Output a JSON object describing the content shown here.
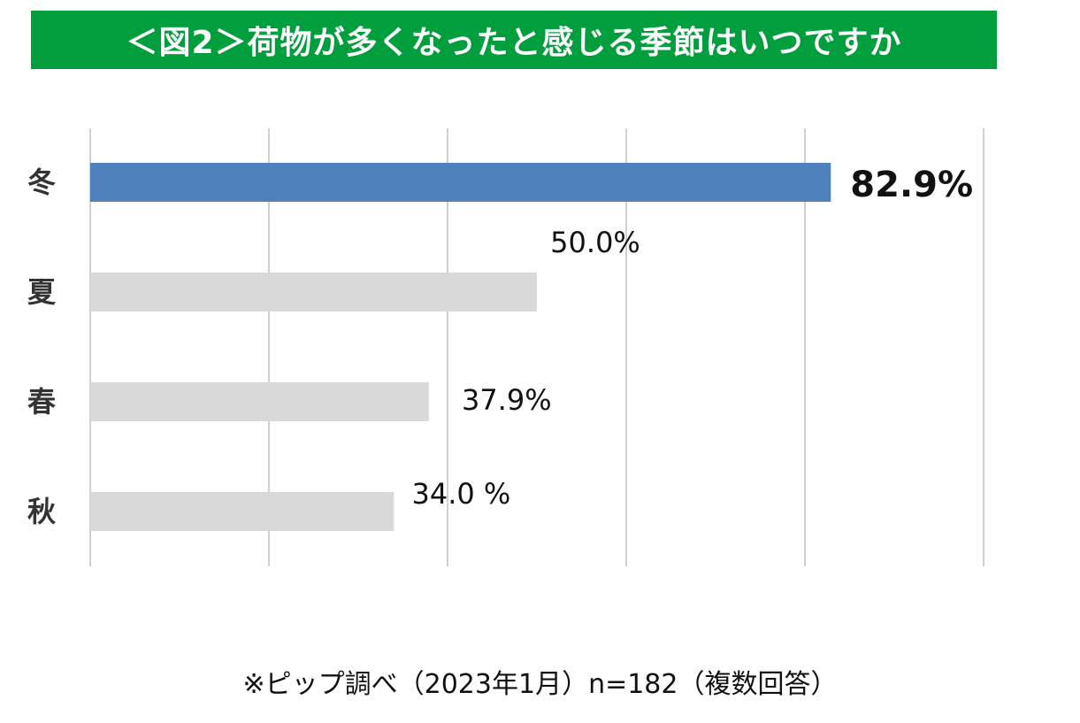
{
  "chart_data": {
    "type": "bar",
    "orientation": "horizontal",
    "title": "＜図2＞荷物が多くなったと感じる季節はいつですか",
    "categories": [
      "冬",
      "夏",
      "春",
      "秋"
    ],
    "values": [
      82.9,
      50.0,
      37.9,
      34.0
    ],
    "value_labels": [
      "82.9%",
      "50.0%",
      "37.9%",
      "34.0 %"
    ],
    "xlim": [
      0,
      100
    ],
    "grid": true,
    "legend": "none",
    "colors": {
      "highlight_bar": "#4f81bd",
      "bar": "#d9d9d9",
      "highlight_label": "#e8110f",
      "label": "#111111",
      "grid": "#d0d0d0",
      "title_bg": "#009e3c"
    },
    "highlight_index": 0
  },
  "footnote": "※ピップ調べ（2023年1月）n=182（複数回答）"
}
